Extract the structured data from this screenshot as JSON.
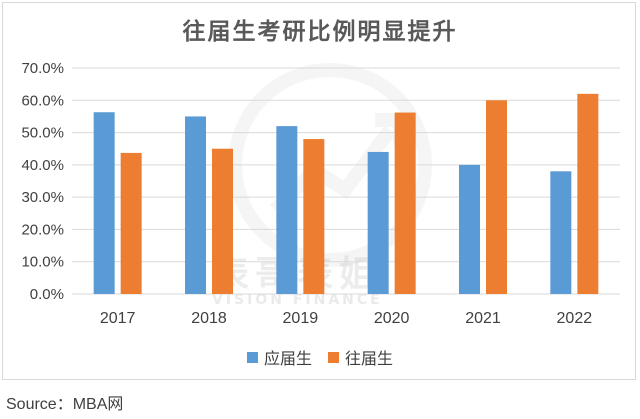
{
  "chart_data": {
    "type": "bar",
    "title": "往届生考研比例明显提升",
    "categories": [
      "2017",
      "2018",
      "2019",
      "2020",
      "2021",
      "2022"
    ],
    "series": [
      {
        "name": "应届生",
        "color": "#5b9bd5",
        "values": [
          56.3,
          55.0,
          52.0,
          44.0,
          40.0,
          38.0
        ]
      },
      {
        "name": "往届生",
        "color": "#ed7d31",
        "values": [
          43.7,
          45.0,
          48.0,
          56.2,
          60.0,
          62.0
        ]
      }
    ],
    "ylim": [
      0,
      70
    ],
    "yticks": [
      0,
      10,
      20,
      30,
      40,
      50,
      60,
      70
    ],
    "ytick_labels": [
      "0.0%",
      "10.0%",
      "20.0%",
      "30.0%",
      "40.0%",
      "50.0%",
      "60.0%",
      "70.0%"
    ],
    "grid": true,
    "legend": "bottom",
    "xlabel": "",
    "ylabel": ""
  },
  "source_text": "Source：MBA网",
  "watermark": {
    "text_cn": "表哥表姐",
    "text_en": "VISION FINANCE"
  }
}
